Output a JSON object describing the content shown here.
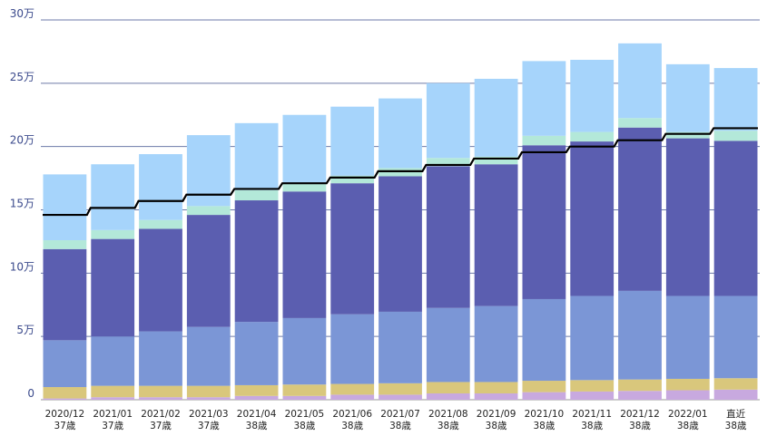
{
  "chart_data": {
    "type": "bar",
    "stacked": true,
    "categories": [
      [
        "2020/12",
        "37歳"
      ],
      [
        "2021/01",
        "37歳"
      ],
      [
        "2021/02",
        "37歳"
      ],
      [
        "2021/03",
        "37歳"
      ],
      [
        "2021/04",
        "38歳"
      ],
      [
        "2021/05",
        "38歳"
      ],
      [
        "2021/06",
        "38歳"
      ],
      [
        "2021/07",
        "38歳"
      ],
      [
        "2021/08",
        "38歳"
      ],
      [
        "2021/09",
        "38歳"
      ],
      [
        "2021/10",
        "38歳"
      ],
      [
        "2021/11",
        "38歳"
      ],
      [
        "2021/12",
        "38歳"
      ],
      [
        "2022/01",
        "38歳"
      ],
      [
        "直近",
        "38歳"
      ]
    ],
    "y_ticks": [
      {
        "value": 0,
        "label": "0"
      },
      {
        "value": 50000,
        "label": "5万"
      },
      {
        "value": 100000,
        "label": "10万"
      },
      {
        "value": 150000,
        "label": "15万"
      },
      {
        "value": 200000,
        "label": "20万"
      },
      {
        "value": 250000,
        "label": "25万"
      },
      {
        "value": 300000,
        "label": "30万"
      }
    ],
    "ylim": [
      0,
      300000
    ],
    "grid": true,
    "series": [
      {
        "color": "#c8a9df",
        "values": [
          1000,
          2000,
          2000,
          2000,
          3000,
          3000,
          4000,
          4000,
          5000,
          5000,
          6000,
          6500,
          7000,
          7500,
          8000
        ]
      },
      {
        "color": "#d9c77c",
        "values": [
          9000,
          9000,
          9000,
          9000,
          8500,
          9000,
          8500,
          9000,
          9000,
          9000,
          9000,
          9000,
          9000,
          9000,
          9000
        ]
      },
      {
        "color": "#7b96d6",
        "values": [
          37000,
          39000,
          43000,
          46500,
          50000,
          52500,
          55000,
          56500,
          58500,
          60000,
          64500,
          66500,
          70000,
          65500,
          65000
        ]
      },
      {
        "color": "#5b5eb0",
        "values": [
          72000,
          77000,
          81000,
          88500,
          96000,
          100000,
          103500,
          107000,
          112000,
          112000,
          121500,
          122000,
          129000,
          124500,
          122500
        ]
      },
      {
        "color": "#b3e8d9",
        "values": [
          7000,
          7000,
          7000,
          7000,
          8000,
          7000,
          6000,
          6500,
          6500,
          6000,
          7500,
          7500,
          7500,
          5000,
          8000
        ]
      },
      {
        "color": "#a6d4fb",
        "values": [
          52000,
          52000,
          52000,
          56000,
          53000,
          53500,
          54500,
          55000,
          59000,
          61500,
          59000,
          57000,
          59000,
          53500,
          49500
        ]
      }
    ],
    "line": {
      "color": "#000000",
      "style": "step",
      "values": [
        146000,
        151500,
        157000,
        162000,
        166500,
        171000,
        175500,
        180500,
        185500,
        190500,
        195500,
        200000,
        205000,
        210000,
        214500
      ]
    }
  }
}
